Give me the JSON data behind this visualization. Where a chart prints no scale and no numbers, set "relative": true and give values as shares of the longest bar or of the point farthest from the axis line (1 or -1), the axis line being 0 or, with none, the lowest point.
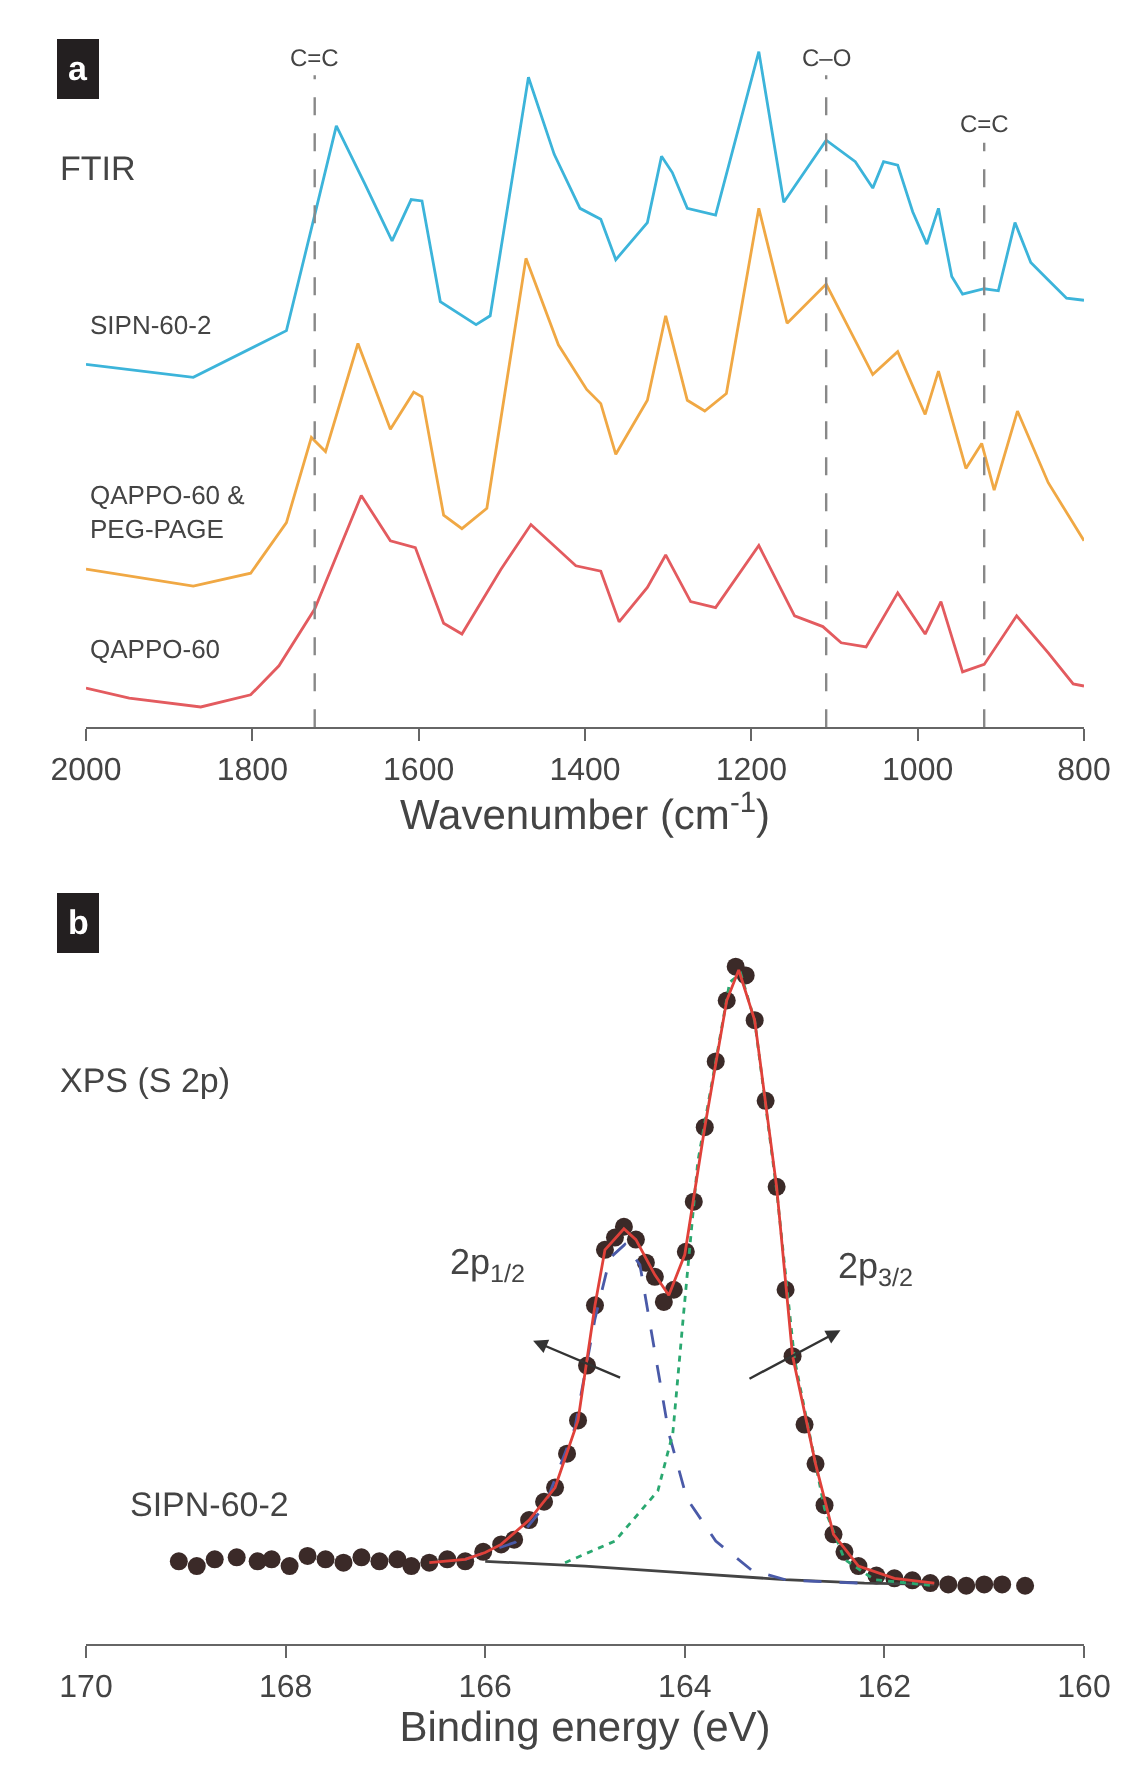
{
  "chart_data": [
    {
      "type": "line",
      "relative": true,
      "xlabel": "Wavenumber (cm$^{-1}$)",
      "xlim": [
        2000,
        800
      ],
      "xticks": [
        2000,
        1800,
        1600,
        1400,
        1200,
        1000,
        800
      ],
      "tick_labels": "x",
      "annotations": [
        "a",
        "FTIR"
      ],
      "ref_lines": [
        {
          "axis": "x",
          "value": 1725,
          "label": "C=C",
          "color": "#888888",
          "line_style": "dashed"
        },
        {
          "axis": "x",
          "value": 1110,
          "label": "C–O",
          "color": "#888888",
          "line_style": "dashed"
        },
        {
          "axis": "x",
          "value": 920,
          "label": "C=C",
          "color": "#888888",
          "line_style": "dashed"
        }
      ],
      "series": [
        {
          "name": "SIPN-60-2",
          "color": "#3cb4da",
          "x": [
            2000,
            1871,
            1759,
            1725,
            1699,
            1665,
            1632,
            1609,
            1596,
            1574,
            1531,
            1514,
            1468,
            1437,
            1406,
            1381,
            1363,
            1325,
            1308,
            1295,
            1277,
            1243,
            1191,
            1161,
            1110,
            1075,
            1054,
            1041,
            1024,
            1006,
            989,
            975,
            959,
            946,
            920,
            903,
            883,
            864,
            843,
            821,
            800
          ],
          "values": [
            0.537,
            0.518,
            0.587,
            0.758,
            0.89,
            0.805,
            0.72,
            0.781,
            0.779,
            0.63,
            0.596,
            0.609,
            0.962,
            0.848,
            0.768,
            0.752,
            0.692,
            0.747,
            0.845,
            0.821,
            0.768,
            0.758,
            1.0,
            0.777,
            0.869,
            0.837,
            0.798,
            0.837,
            0.832,
            0.763,
            0.715,
            0.768,
            0.667,
            0.641,
            0.649,
            0.646,
            0.747,
            0.688,
            0.662,
            0.635,
            0.632
          ]
        },
        {
          "name": "QAPPO-60 &\nPEG-PAGE",
          "color": "#f0a844",
          "x": [
            2000,
            1871,
            1802,
            1759,
            1729,
            1712,
            1673,
            1634,
            1606,
            1596,
            1570,
            1548,
            1518,
            1471,
            1432,
            1398,
            1381,
            1363,
            1325,
            1303,
            1277,
            1256,
            1230,
            1191,
            1157,
            1110,
            1054,
            1024,
            991,
            975,
            942,
            923,
            908,
            880,
            843,
            800
          ],
          "values": [
            0.234,
            0.209,
            0.228,
            0.303,
            0.429,
            0.408,
            0.568,
            0.441,
            0.496,
            0.489,
            0.314,
            0.294,
            0.324,
            0.694,
            0.566,
            0.5,
            0.479,
            0.404,
            0.484,
            0.609,
            0.484,
            0.468,
            0.494,
            0.768,
            0.598,
            0.656,
            0.522,
            0.556,
            0.463,
            0.527,
            0.383,
            0.42,
            0.351,
            0.468,
            0.362,
            0.276
          ]
        },
        {
          "name": "QAPPO-60",
          "color": "#e35b5f",
          "x": [
            2000,
            1948,
            1862,
            1802,
            1768,
            1725,
            1669,
            1634,
            1604,
            1570,
            1548,
            1501,
            1465,
            1411,
            1381,
            1359,
            1325,
            1303,
            1273,
            1243,
            1191,
            1148,
            1114,
            1092,
            1062,
            1024,
            991,
            972,
            946,
            920,
            881,
            843,
            813,
            800
          ],
          "values": [
            0.058,
            0.043,
            0.03,
            0.048,
            0.091,
            0.175,
            0.343,
            0.276,
            0.266,
            0.154,
            0.138,
            0.234,
            0.3,
            0.239,
            0.231,
            0.156,
            0.207,
            0.255,
            0.186,
            0.177,
            0.269,
            0.165,
            0.149,
            0.125,
            0.119,
            0.199,
            0.138,
            0.186,
            0.082,
            0.093,
            0.165,
            0.11,
            0.064,
            0.061
          ]
        }
      ]
    },
    {
      "type": "scatter",
      "relative": true,
      "xlabel": "Binding energy (eV)",
      "xlim": [
        170,
        160
      ],
      "xticks": [
        170,
        168,
        166,
        164,
        162,
        160
      ],
      "tick_labels": "x",
      "annotations": [
        "b",
        "XPS (S 2p)",
        "SIPN-60-2",
        "2p$_{1/2}$",
        "2p$_{3/2}$"
      ],
      "series": [
        {
          "type": "scatter",
          "marker": "circle",
          "color": "#3b2a28",
          "x": [
            169.07,
            168.89,
            168.71,
            168.49,
            168.28,
            168.14,
            167.96,
            167.78,
            167.6,
            167.42,
            167.24,
            167.06,
            166.88,
            166.74,
            166.56,
            166.38,
            166.2,
            166.02,
            165.84,
            165.71,
            165.56,
            165.41,
            165.3,
            165.18,
            165.07,
            164.98,
            164.9,
            164.8,
            164.7,
            164.61,
            164.49,
            164.39,
            164.3,
            164.21,
            164.11,
            163.99,
            163.91,
            163.8,
            163.69,
            163.58,
            163.49,
            163.39,
            163.3,
            163.19,
            163.08,
            162.99,
            162.92,
            162.8,
            162.69,
            162.6,
            162.51,
            162.4,
            162.26,
            162.08,
            161.9,
            161.72,
            161.54,
            161.36,
            161.18,
            161.0,
            160.82,
            160.59
          ],
          "values": [
            0.122,
            0.115,
            0.125,
            0.128,
            0.122,
            0.125,
            0.115,
            0.13,
            0.125,
            0.12,
            0.128,
            0.122,
            0.125,
            0.115,
            0.12,
            0.125,
            0.122,
            0.136,
            0.147,
            0.154,
            0.183,
            0.21,
            0.231,
            0.281,
            0.33,
            0.411,
            0.5,
            0.582,
            0.6,
            0.616,
            0.597,
            0.563,
            0.542,
            0.505,
            0.523,
            0.579,
            0.653,
            0.763,
            0.86,
            0.95,
            1.0,
            0.987,
            0.921,
            0.802,
            0.675,
            0.523,
            0.425,
            0.324,
            0.266,
            0.205,
            0.162,
            0.136,
            0.115,
            0.101,
            0.097,
            0.094,
            0.09,
            0.088,
            0.086,
            0.088,
            0.088,
            0.086
          ]
        },
        {
          "type": "line",
          "line_style": "solid",
          "color": "#444444",
          "x": [
            166.0,
            165.0,
            164.0,
            163.0,
            162.2,
            161.5
          ],
          "values": [
            0.122,
            0.115,
            0.105,
            0.095,
            0.09,
            0.088
          ]
        },
        {
          "type": "line",
          "line_style": "dashed",
          "color": "#4a5aa8",
          "x": [
            166.2,
            165.7,
            165.4,
            165.1,
            164.9,
            164.75,
            164.6,
            164.45,
            164.37,
            164.16,
            163.98,
            163.69,
            163.33,
            162.97,
            162.26
          ],
          "values": [
            0.125,
            0.15,
            0.205,
            0.32,
            0.48,
            0.57,
            0.59,
            0.56,
            0.491,
            0.311,
            0.215,
            0.152,
            0.109,
            0.094,
            0.09
          ]
        },
        {
          "type": "line",
          "line_style": "dotted",
          "color": "#2aa870",
          "x": [
            165.2,
            164.7,
            164.27,
            164.12,
            164.01,
            163.87,
            163.69,
            163.55,
            163.44,
            163.3,
            163.08,
            162.9,
            162.6,
            162.4,
            162.1,
            161.5
          ],
          "values": [
            0.12,
            0.152,
            0.226,
            0.311,
            0.491,
            0.712,
            0.86,
            0.977,
            0.99,
            0.92,
            0.67,
            0.42,
            0.2,
            0.125,
            0.095,
            0.086
          ]
        },
        {
          "type": "line",
          "line_style": "solid",
          "color": "#e0413a",
          "x": [
            166.56,
            166.2,
            166.0,
            165.84,
            165.56,
            165.3,
            165.07,
            164.9,
            164.8,
            164.61,
            164.49,
            164.3,
            164.16,
            164.0,
            163.8,
            163.58,
            163.46,
            163.3,
            163.08,
            162.92,
            162.69,
            162.51,
            162.26,
            161.9,
            161.5
          ],
          "values": [
            0.12,
            0.125,
            0.135,
            0.147,
            0.183,
            0.231,
            0.33,
            0.5,
            0.582,
            0.613,
            0.597,
            0.545,
            0.515,
            0.575,
            0.763,
            0.95,
            0.995,
            0.921,
            0.675,
            0.425,
            0.266,
            0.162,
            0.115,
            0.097,
            0.09
          ]
        }
      ]
    }
  ]
}
